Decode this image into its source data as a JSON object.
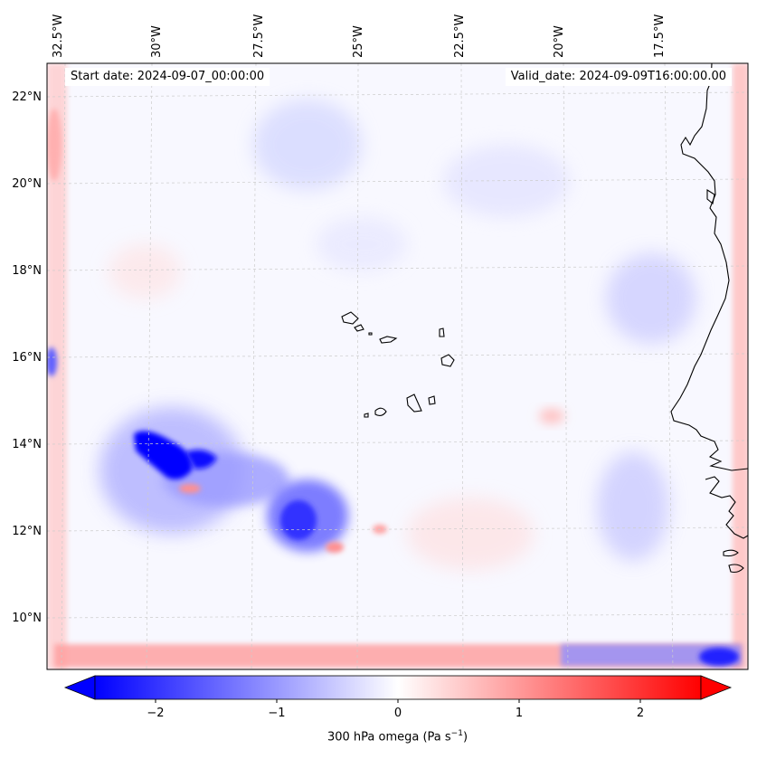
{
  "map": {
    "start_date": "Start date: 2024-09-07_00:00:00",
    "valid_date": "Valid_date: 2024-09-09T16:00:00.00",
    "lon_labels": [
      "32.5°W",
      "30°W",
      "27.5°W",
      "25°W",
      "22.5°W",
      "20°W",
      "17.5°W"
    ],
    "lat_labels": [
      "22°N",
      "20°N",
      "18°N",
      "16°N",
      "14°N",
      "12°N",
      "10°N"
    ],
    "gridlines": true,
    "coastlines": true
  },
  "colorbar": {
    "label_main": "300 hPa omega (Pa s",
    "label_exp": "−1",
    "label_end": ")",
    "ticks": [
      "−2",
      "−1",
      "0",
      "1",
      "2"
    ],
    "range": [
      -2.6,
      2.6
    ],
    "extend": "both",
    "colormap": "bwr",
    "colors": {
      "min": "#0000ff",
      "mid": "#ffffff",
      "max": "#ff0000"
    }
  }
}
